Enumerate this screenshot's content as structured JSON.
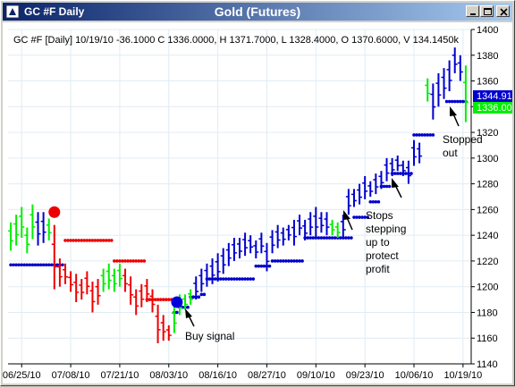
{
  "window": {
    "title": "GC #F Daily",
    "chart_title": "Gold (Futures)"
  },
  "info_line": "GC #F [Daily] 10/19/10  -36.1000 C 1336.0000, H 1371.7000, L 1328.4000, O 1370.6000, V 134.1450k",
  "price_labels": {
    "high": "1344.91",
    "close": "1336.00"
  },
  "annotations": {
    "buy": "Buy signal",
    "stops": [
      "Stops",
      "stepping",
      "up to",
      "protect",
      "profit"
    ],
    "stopped": [
      "Stopped",
      "out"
    ]
  },
  "colors": {
    "up": "#00ee00",
    "down": "#ee0000",
    "blue": "#0000cc",
    "grid": "#e0ecf4",
    "label_high": "#0000cc",
    "label_close": "#00ee00"
  },
  "chart_data": {
    "type": "ohlc",
    "ylim": [
      1140,
      1400
    ],
    "y_ticks": [
      1140,
      1160,
      1180,
      1200,
      1220,
      1240,
      1260,
      1280,
      1300,
      1320,
      1340,
      1360,
      1380,
      1400
    ],
    "x_ticks": [
      "06/25/10",
      "07/08/10",
      "07/21/10",
      "08/03/10",
      "08/16/10",
      "08/27/10",
      "09/10/10",
      "09/23/10",
      "10/06/10",
      "10/19/10"
    ],
    "x_tick_index": [
      2,
      11,
      20,
      29,
      38,
      47,
      56,
      65,
      74,
      83
    ],
    "bar_count": 85,
    "bars": [
      {
        "l": 1228,
        "h": 1250,
        "c": "g"
      },
      {
        "l": 1232,
        "h": 1256,
        "c": "g"
      },
      {
        "l": 1238,
        "h": 1262,
        "c": "g"
      },
      {
        "l": 1226,
        "h": 1246,
        "c": "g"
      },
      {
        "l": 1237,
        "h": 1264,
        "c": "g"
      },
      {
        "l": 1232,
        "h": 1258,
        "c": "b"
      },
      {
        "l": 1234,
        "h": 1258,
        "c": "b"
      },
      {
        "l": 1236,
        "h": 1253,
        "c": "g"
      },
      {
        "l": 1198,
        "h": 1248,
        "c": "r"
      },
      {
        "l": 1200,
        "h": 1222,
        "c": "r"
      },
      {
        "l": 1202,
        "h": 1218,
        "c": "r"
      },
      {
        "l": 1196,
        "h": 1212,
        "c": "r"
      },
      {
        "l": 1188,
        "h": 1210,
        "c": "r"
      },
      {
        "l": 1190,
        "h": 1206,
        "c": "r"
      },
      {
        "l": 1194,
        "h": 1212,
        "c": "r"
      },
      {
        "l": 1180,
        "h": 1204,
        "c": "r"
      },
      {
        "l": 1186,
        "h": 1206,
        "c": "r"
      },
      {
        "l": 1196,
        "h": 1214,
        "c": "g"
      },
      {
        "l": 1198,
        "h": 1218,
        "c": "g"
      },
      {
        "l": 1196,
        "h": 1214,
        "c": "g"
      },
      {
        "l": 1200,
        "h": 1218,
        "c": "g"
      },
      {
        "l": 1196,
        "h": 1214,
        "c": "r"
      },
      {
        "l": 1186,
        "h": 1208,
        "c": "r"
      },
      {
        "l": 1178,
        "h": 1198,
        "c": "r"
      },
      {
        "l": 1184,
        "h": 1202,
        "c": "r"
      },
      {
        "l": 1188,
        "h": 1206,
        "c": "r"
      },
      {
        "l": 1180,
        "h": 1198,
        "c": "r"
      },
      {
        "l": 1156,
        "h": 1186,
        "c": "r"
      },
      {
        "l": 1158,
        "h": 1178,
        "c": "r"
      },
      {
        "l": 1158,
        "h": 1170,
        "c": "r"
      },
      {
        "l": 1164,
        "h": 1186,
        "c": "g"
      },
      {
        "l": 1178,
        "h": 1194,
        "c": "g"
      },
      {
        "l": 1182,
        "h": 1194,
        "c": "g"
      },
      {
        "l": 1186,
        "h": 1198,
        "c": "g"
      },
      {
        "l": 1190,
        "h": 1208,
        "c": "b"
      },
      {
        "l": 1196,
        "h": 1214,
        "c": "b"
      },
      {
        "l": 1200,
        "h": 1218,
        "c": "b"
      },
      {
        "l": 1202,
        "h": 1222,
        "c": "b"
      },
      {
        "l": 1204,
        "h": 1226,
        "c": "b"
      },
      {
        "l": 1210,
        "h": 1230,
        "c": "b"
      },
      {
        "l": 1216,
        "h": 1234,
        "c": "b"
      },
      {
        "l": 1220,
        "h": 1238,
        "c": "b"
      },
      {
        "l": 1222,
        "h": 1238,
        "c": "b"
      },
      {
        "l": 1224,
        "h": 1242,
        "c": "b"
      },
      {
        "l": 1226,
        "h": 1240,
        "c": "b"
      },
      {
        "l": 1222,
        "h": 1236,
        "c": "b"
      },
      {
        "l": 1226,
        "h": 1242,
        "c": "b"
      },
      {
        "l": 1212,
        "h": 1234,
        "c": "b"
      },
      {
        "l": 1226,
        "h": 1244,
        "c": "b"
      },
      {
        "l": 1230,
        "h": 1248,
        "c": "b"
      },
      {
        "l": 1232,
        "h": 1246,
        "c": "b"
      },
      {
        "l": 1236,
        "h": 1248,
        "c": "b"
      },
      {
        "l": 1232,
        "h": 1252,
        "c": "b"
      },
      {
        "l": 1240,
        "h": 1256,
        "c": "b"
      },
      {
        "l": 1236,
        "h": 1252,
        "c": "b"
      },
      {
        "l": 1240,
        "h": 1258,
        "c": "b"
      },
      {
        "l": 1238,
        "h": 1262,
        "c": "b"
      },
      {
        "l": 1242,
        "h": 1258,
        "c": "b"
      },
      {
        "l": 1240,
        "h": 1258,
        "c": "b"
      },
      {
        "l": 1240,
        "h": 1252,
        "c": "g"
      },
      {
        "l": 1238,
        "h": 1250,
        "c": "g"
      },
      {
        "l": 1238,
        "h": 1256,
        "c": "b"
      },
      {
        "l": 1256,
        "h": 1276,
        "c": "b"
      },
      {
        "l": 1262,
        "h": 1276,
        "c": "b"
      },
      {
        "l": 1264,
        "h": 1280,
        "c": "b"
      },
      {
        "l": 1268,
        "h": 1286,
        "c": "b"
      },
      {
        "l": 1270,
        "h": 1282,
        "c": "b"
      },
      {
        "l": 1272,
        "h": 1288,
        "c": "b"
      },
      {
        "l": 1276,
        "h": 1290,
        "c": "b"
      },
      {
        "l": 1282,
        "h": 1300,
        "c": "b"
      },
      {
        "l": 1286,
        "h": 1300,
        "c": "b"
      },
      {
        "l": 1290,
        "h": 1302,
        "c": "b"
      },
      {
        "l": 1286,
        "h": 1298,
        "c": "b"
      },
      {
        "l": 1280,
        "h": 1298,
        "c": "b"
      },
      {
        "l": 1294,
        "h": 1314,
        "c": "b"
      },
      {
        "l": 1296,
        "h": 1312,
        "c": "b"
      },
      {
        "l": 1298,
        "h": 1316,
        "c": "b"
      },
      {
        "l": 1302,
        "h": 1320,
        "c": "b"
      },
      {
        "l": 1304,
        "h": 1316,
        "c": "b"
      },
      {
        "l": 1314,
        "h": 1336,
        "c": "b"
      },
      {
        "l": 1326,
        "h": 1346,
        "c": "b"
      },
      {
        "l": 1332,
        "h": 1350,
        "c": "b"
      },
      {
        "l": 1328,
        "h": 1344,
        "c": "b"
      },
      {
        "l": 1326,
        "h": 1346,
        "c": "g"
      },
      {
        "l": 1332,
        "h": 1352,
        "c": "g"
      }
    ],
    "late_bars": [
      {
        "i": 76.5,
        "l": 1344,
        "h": 1362,
        "c": "g"
      },
      {
        "i": 77.5,
        "l": 1330,
        "h": 1358,
        "c": "b"
      },
      {
        "i": 78.5,
        "l": 1340,
        "h": 1366,
        "c": "b"
      },
      {
        "i": 79.5,
        "l": 1346,
        "h": 1370,
        "c": "b"
      },
      {
        "i": 80.5,
        "l": 1352,
        "h": 1376,
        "c": "b"
      },
      {
        "i": 81.5,
        "l": 1366,
        "h": 1386,
        "c": "b"
      },
      {
        "i": 82.5,
        "l": 1360,
        "h": 1380,
        "c": "b"
      },
      {
        "i": 83.5,
        "l": 1328,
        "h": 1372,
        "c": "g"
      }
    ],
    "stops_blue": [
      {
        "from": 0,
        "to": 9,
        "y": 1217
      },
      {
        "from": 30,
        "to": 30,
        "y": 1180
      },
      {
        "from": 31,
        "to": 32,
        "y": 1184
      },
      {
        "from": 33,
        "to": 34,
        "y": 1192
      },
      {
        "from": 35,
        "to": 35,
        "y": 1194
      },
      {
        "from": 36,
        "to": 44,
        "y": 1206
      },
      {
        "from": 45,
        "to": 47,
        "y": 1216
      },
      {
        "from": 48,
        "to": 53,
        "y": 1220
      },
      {
        "from": 54,
        "to": 62,
        "y": 1238
      },
      {
        "from": 63,
        "to": 65,
        "y": 1254
      },
      {
        "from": 66,
        "to": 67,
        "y": 1266
      },
      {
        "from": 68,
        "to": 69,
        "y": 1278
      },
      {
        "from": 70,
        "to": 73,
        "y": 1288
      },
      {
        "from": 74,
        "to": 77,
        "y": 1318
      },
      {
        "from": 80,
        "to": 83,
        "y": 1344
      }
    ],
    "stops_red": [
      {
        "from": 10,
        "to": 18,
        "y": 1236
      },
      {
        "from": 19,
        "to": 24,
        "y": 1220
      },
      {
        "from": 25,
        "to": 29,
        "y": 1190
      }
    ],
    "markers": [
      {
        "type": "sell-dot",
        "i": 8,
        "y": 1258,
        "color": "#ee0000"
      },
      {
        "type": "buy-dot",
        "i": 30.5,
        "y": 1188,
        "color": "#0000dd"
      }
    ]
  }
}
